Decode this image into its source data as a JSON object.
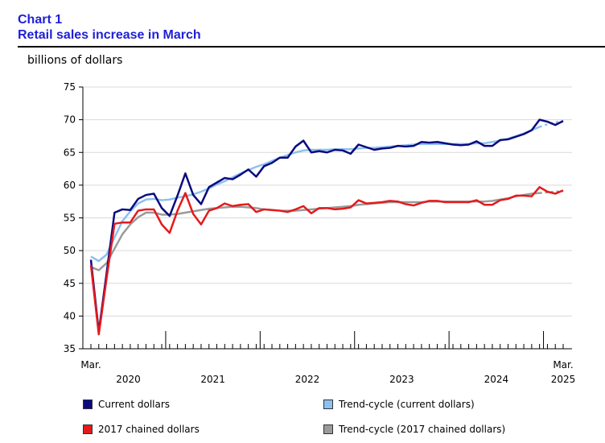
{
  "header": {
    "chart_number": "Chart 1",
    "title": "Retail sales increase in March",
    "unit_label": "billions of dollars"
  },
  "colors": {
    "current": "#0a0a7e",
    "trend_current": "#8ec0ef",
    "chained": "#e41a1c",
    "trend_chained": "#9a9a9a"
  },
  "chart_data": {
    "type": "line",
    "title": "Retail sales increase in March",
    "ylabel": "billions of dollars",
    "ylim": [
      35,
      75
    ],
    "yticks": [
      "35",
      "40",
      "45",
      "50",
      "55",
      "60",
      "65",
      "70",
      "75"
    ],
    "x_start": "2020-03",
    "x_end": "2025-03",
    "year_labels": [
      "2020",
      "2021",
      "2022",
      "2023",
      "2024",
      "2025"
    ],
    "first_month_label": "Mar.",
    "last_month_label": "Mar.",
    "last_year_label": "2025",
    "series": [
      {
        "name": "Current dollars",
        "key": "current",
        "values": [
          48.6,
          37.6,
          46.6,
          55.8,
          56.3,
          56.2,
          57.9,
          58.5,
          58.7,
          56.5,
          55.3,
          58.4,
          61.8,
          58.5,
          57.1,
          59.7,
          60.4,
          61.1,
          60.9,
          61.6,
          62.4,
          61.3,
          62.9,
          63.4,
          64.2,
          64.2,
          65.9,
          66.8,
          65.0,
          65.2,
          65.0,
          65.4,
          65.3,
          64.8,
          66.2,
          65.8,
          65.4,
          65.6,
          65.7,
          66.0,
          65.9,
          66.0,
          66.6,
          66.5,
          66.6,
          66.4,
          66.2,
          66.1,
          66.2,
          66.7,
          66.0,
          66.0,
          66.9,
          67.0,
          67.4,
          67.8,
          68.4,
          70.0,
          69.7,
          69.2,
          69.8
        ]
      },
      {
        "name": "Trend-cycle (current dollars)",
        "key": "trend_current",
        "dashed_tail": 3,
        "values": [
          49.1,
          48.4,
          49.4,
          52.0,
          54.5,
          56.0,
          57.2,
          57.8,
          57.9,
          57.7,
          57.8,
          58.1,
          58.3,
          58.6,
          59.0,
          59.5,
          60.1,
          60.6,
          61.2,
          61.8,
          62.3,
          62.8,
          63.2,
          63.7,
          64.2,
          64.6,
          65.0,
          65.3,
          65.4,
          65.4,
          65.4,
          65.5,
          65.5,
          65.5,
          65.6,
          65.7,
          65.7,
          65.8,
          65.9,
          66.0,
          66.1,
          66.2,
          66.3,
          66.3,
          66.3,
          66.3,
          66.3,
          66.3,
          66.3,
          66.4,
          66.4,
          66.6,
          66.8,
          67.1,
          67.5,
          67.9,
          68.4,
          68.9,
          69.3,
          69.6,
          69.8
        ]
      },
      {
        "name": "2017 chained dollars",
        "key": "chained",
        "values": [
          47.8,
          37.2,
          45.8,
          54.1,
          54.3,
          54.3,
          56.1,
          56.3,
          56.3,
          54.0,
          52.7,
          56.1,
          58.8,
          55.6,
          54.0,
          56.1,
          56.5,
          57.2,
          56.8,
          57.0,
          57.1,
          55.9,
          56.3,
          56.2,
          56.1,
          55.9,
          56.3,
          56.8,
          55.7,
          56.5,
          56.5,
          56.3,
          56.4,
          56.6,
          57.7,
          57.2,
          57.3,
          57.4,
          57.6,
          57.5,
          57.1,
          56.9,
          57.3,
          57.6,
          57.6,
          57.4,
          57.4,
          57.4,
          57.4,
          57.7,
          57.0,
          57.0,
          57.7,
          57.9,
          58.4,
          58.4,
          58.3,
          59.7,
          59.0,
          58.7,
          59.2
        ]
      },
      {
        "name": "Trend-cycle (2017 chained dollars)",
        "key": "trend_chained",
        "dashed_tail": 3,
        "values": [
          47.5,
          47.0,
          48.1,
          50.3,
          52.5,
          54.0,
          55.1,
          55.8,
          55.8,
          55.5,
          55.5,
          55.6,
          55.8,
          56.0,
          56.2,
          56.4,
          56.5,
          56.6,
          56.7,
          56.7,
          56.6,
          56.5,
          56.3,
          56.2,
          56.1,
          56.1,
          56.1,
          56.2,
          56.3,
          56.4,
          56.5,
          56.6,
          56.7,
          56.8,
          57.0,
          57.1,
          57.2,
          57.3,
          57.4,
          57.4,
          57.4,
          57.4,
          57.4,
          57.5,
          57.5,
          57.5,
          57.5,
          57.5,
          57.5,
          57.5,
          57.5,
          57.6,
          57.8,
          58.0,
          58.3,
          58.5,
          58.7,
          58.8,
          58.9,
          59.0,
          59.1
        ]
      }
    ]
  },
  "legend": [
    {
      "label": "Current dollars",
      "key": "current"
    },
    {
      "label": "Trend-cycle (current dollars)",
      "key": "trend_current"
    },
    {
      "label": "2017 chained dollars",
      "key": "chained"
    },
    {
      "label": "Trend-cycle (2017 chained dollars)",
      "key": "trend_chained"
    }
  ]
}
